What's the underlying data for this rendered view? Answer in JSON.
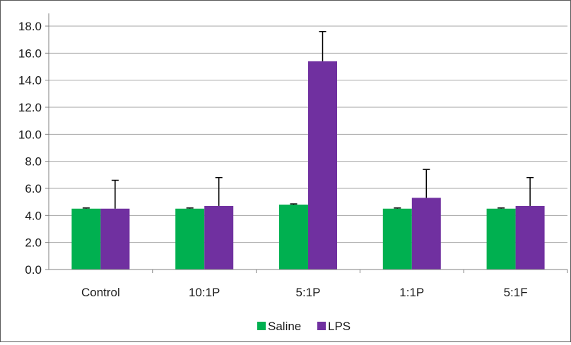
{
  "chart_data": {
    "type": "bar",
    "title": "",
    "xlabel": "",
    "ylabel": "",
    "categories": [
      "Control",
      "10:1P",
      "5:1P",
      "1:1P",
      "5:1F"
    ],
    "series": [
      {
        "name": "Saline",
        "color": "#00b050",
        "values": [
          4.5,
          4.5,
          4.8,
          4.5,
          4.5
        ],
        "errors": [
          0.05,
          0.05,
          0.05,
          0.05,
          0.05
        ]
      },
      {
        "name": "LPS",
        "color": "#7030a0",
        "values": [
          4.5,
          4.7,
          15.4,
          5.3,
          4.7
        ],
        "errors": [
          2.1,
          2.1,
          2.2,
          2.1,
          2.1
        ]
      }
    ],
    "ylim": [
      0,
      18
    ],
    "yticks": [
      "0.0",
      "2.0",
      "4.0",
      "6.0",
      "8.0",
      "10.0",
      "12.0",
      "14.0",
      "16.0",
      "18.0"
    ],
    "grid": true,
    "legend_position": "bottom"
  }
}
